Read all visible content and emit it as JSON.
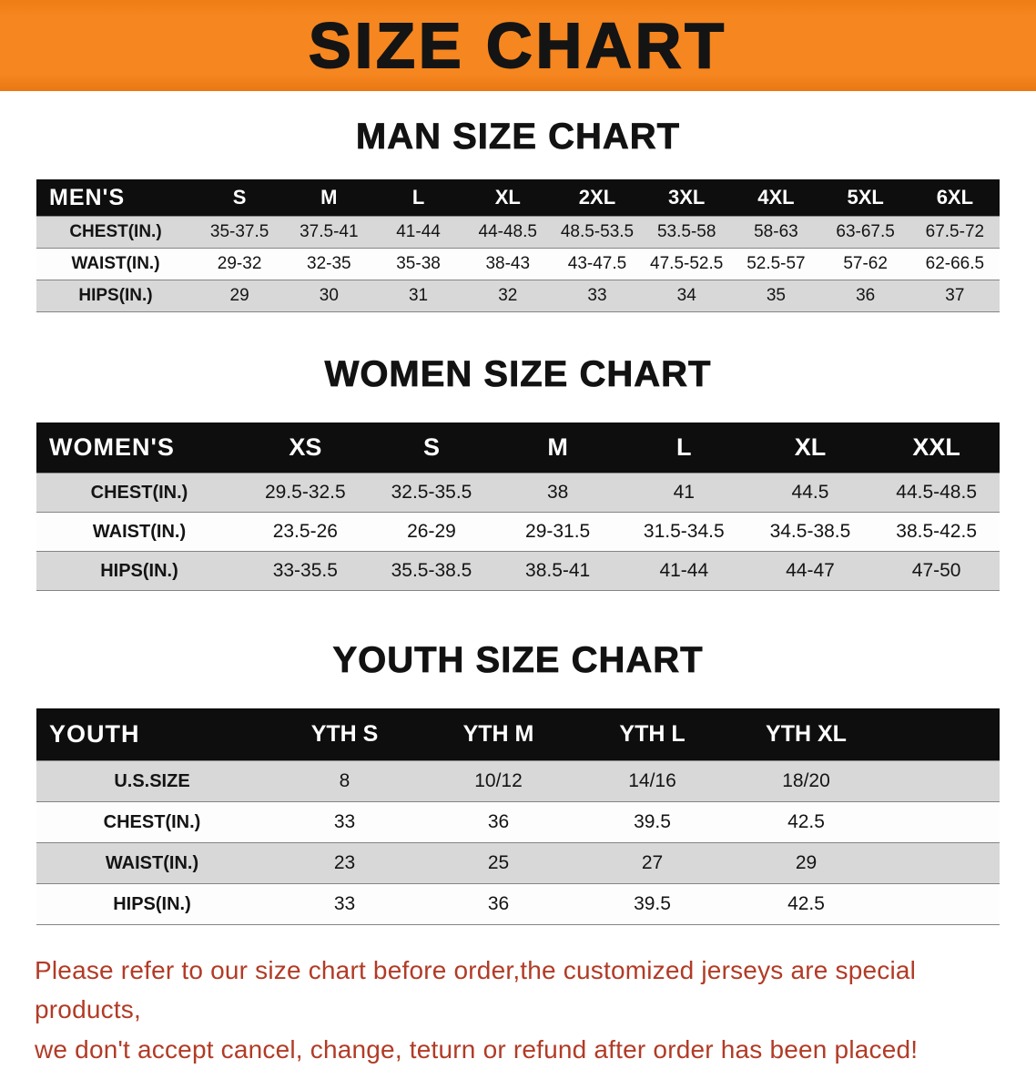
{
  "banner": {
    "title": "SIZE CHART"
  },
  "men": {
    "heading": "MAN SIZE CHART",
    "table": {
      "label": "MEN'S",
      "columns": [
        "S",
        "M",
        "L",
        "XL",
        "2XL",
        "3XL",
        "4XL",
        "5XL",
        "6XL"
      ],
      "rows": [
        {
          "label": "CHEST(IN.)",
          "values": [
            "35-37.5",
            "37.5-41",
            "41-44",
            "44-48.5",
            "48.5-53.5",
            "53.5-58",
            "58-63",
            "63-67.5",
            "67.5-72"
          ]
        },
        {
          "label": "WAIST(IN.)",
          "values": [
            "29-32",
            "32-35",
            "35-38",
            "38-43",
            "43-47.5",
            "47.5-52.5",
            "52.5-57",
            "57-62",
            "62-66.5"
          ]
        },
        {
          "label": "HIPS(IN.)",
          "values": [
            "29",
            "30",
            "31",
            "32",
            "33",
            "34",
            "35",
            "36",
            "37"
          ]
        }
      ]
    }
  },
  "women": {
    "heading": "WOMEN SIZE CHART",
    "table": {
      "label": "WOMEN'S",
      "columns": [
        "XS",
        "S",
        "M",
        "L",
        "XL",
        "XXL"
      ],
      "rows": [
        {
          "label": "CHEST(IN.)",
          "values": [
            "29.5-32.5",
            "32.5-35.5",
            "38",
            "41",
            "44.5",
            "44.5-48.5"
          ]
        },
        {
          "label": "WAIST(IN.)",
          "values": [
            "23.5-26",
            "26-29",
            "29-31.5",
            "31.5-34.5",
            "34.5-38.5",
            "38.5-42.5"
          ]
        },
        {
          "label": "HIPS(IN.)",
          "values": [
            "33-35.5",
            "35.5-38.5",
            "38.5-41",
            "41-44",
            "44-47",
            "47-50"
          ]
        }
      ]
    }
  },
  "youth": {
    "heading": "YOUTH SIZE CHART",
    "table": {
      "label": "YOUTH",
      "columns": [
        "YTH S",
        "YTH M",
        "YTH L",
        "YTH XL"
      ],
      "rows": [
        {
          "label": "U.S.SIZE",
          "values": [
            "8",
            "10/12",
            "14/16",
            "18/20"
          ]
        },
        {
          "label": "CHEST(IN.)",
          "values": [
            "33",
            "36",
            "39.5",
            "42.5"
          ]
        },
        {
          "label": "WAIST(IN.)",
          "values": [
            "23",
            "25",
            "27",
            "29"
          ]
        },
        {
          "label": "HIPS(IN.)",
          "values": [
            "33",
            "36",
            "39.5",
            "42.5"
          ]
        }
      ]
    }
  },
  "note": {
    "line1": "Please refer to our size chart before order,the customized jerseys are special products,",
    "line2": "we don't accept cancel, change, teturn or refund after order has been placed!"
  },
  "colors": {
    "banner_bg": "#f6861f",
    "table_header_bg": "#0e0e0e",
    "row_shade": "#d8d8d8",
    "note_text": "#b23b26"
  }
}
